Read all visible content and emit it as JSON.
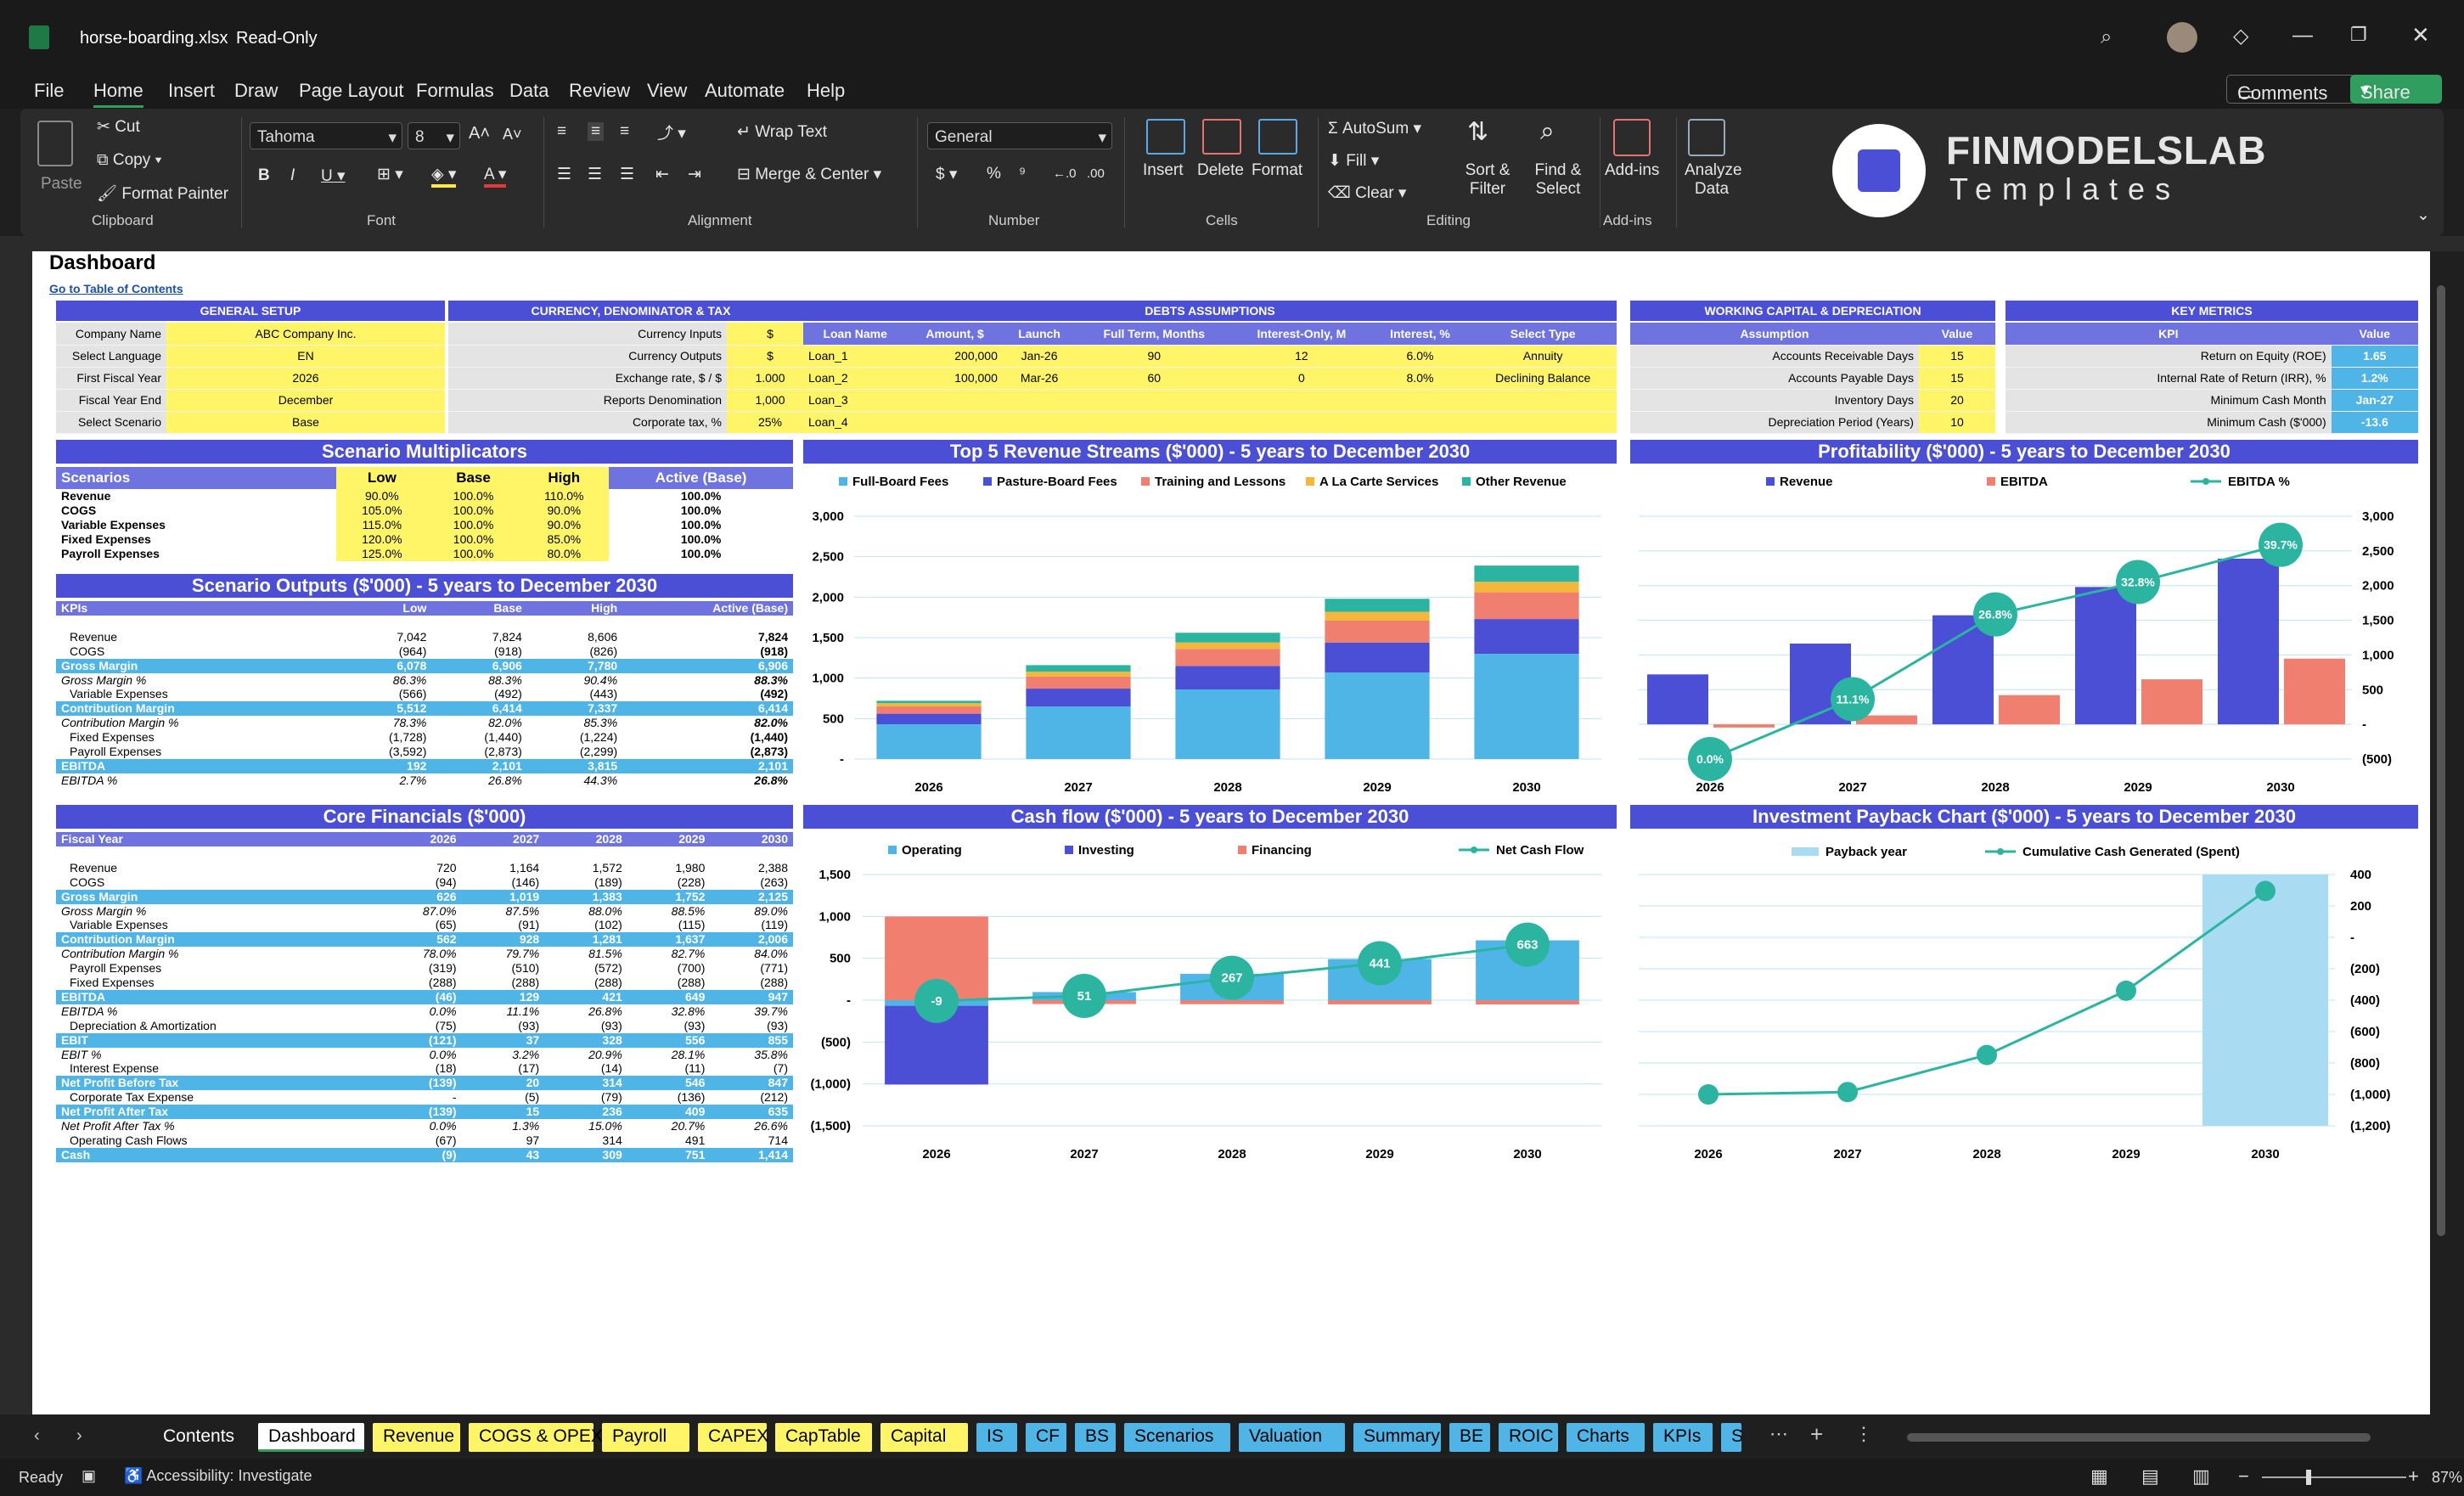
{
  "window": {
    "file_name": "horse-boarding.xlsx",
    "mode": "Read-Only",
    "zoom": "87%"
  },
  "menu": [
    "File",
    "Home",
    "Insert",
    "Draw",
    "Page Layout",
    "Formulas",
    "Data",
    "Review",
    "View",
    "Automate",
    "Help"
  ],
  "buttons": {
    "comments": "Comments",
    "share": "Share"
  },
  "ribbon": {
    "paste": "Paste",
    "cut": "Cut",
    "copy": "Copy",
    "format_painter": "Format Painter",
    "clipboard": "Clipboard",
    "font_name": "Tahoma",
    "font_size": "8",
    "font": "Font",
    "wrap_text": "Wrap Text",
    "merge_center": "Merge & Center",
    "alignment": "Alignment",
    "number_format": "General",
    "number": "Number",
    "insert": "Insert",
    "delete": "Delete",
    "format": "Format",
    "cells": "Cells",
    "autosum": "AutoSum",
    "fill": "Fill",
    "clear": "Clear",
    "sort_filter": "Sort & Filter",
    "find_select": "Find & Select",
    "editing": "Editing",
    "addins": "Add-ins",
    "addins_group": "Add-ins",
    "analyze": "Analyze Data",
    "brand_line1": "FINMODELSLAB",
    "brand_line2": "Templates"
  },
  "sheet": {
    "title": "Dashboard",
    "link": "Go to Table of Contents"
  },
  "general_setup": {
    "header": "GENERAL SETUP",
    "rows": [
      [
        "Company Name",
        "ABC Company Inc."
      ],
      [
        "Select Language",
        "EN"
      ],
      [
        "First Fiscal Year",
        "2026"
      ],
      [
        "Fiscal Year End",
        "December"
      ],
      [
        "Select Scenario",
        "Base"
      ]
    ]
  },
  "currency": {
    "header": "CURRENCY, DENOMINATOR & TAX",
    "rows": [
      [
        "Currency Inputs",
        "$"
      ],
      [
        "Currency Outputs",
        "$"
      ],
      [
        "Exchange rate, $ / $",
        "1.000"
      ],
      [
        "Reports Denomination",
        "1,000"
      ],
      [
        "Corporate tax, %",
        "25%"
      ]
    ]
  },
  "debts": {
    "header": "DEBTS ASSUMPTIONS",
    "cols": [
      "Loan Name",
      "Amount, $",
      "Launch",
      "Full Term, Months",
      "Interest-Only, M",
      "Interest, %",
      "Select Type"
    ],
    "rows": [
      [
        "Loan_1",
        "200,000",
        "Jan-26",
        "90",
        "12",
        "6.0%",
        "Annuity"
      ],
      [
        "Loan_2",
        "100,000",
        "Mar-26",
        "60",
        "0",
        "8.0%",
        "Declining Balance"
      ],
      [
        "Loan_3",
        "",
        "",
        "",
        "",
        "",
        ""
      ],
      [
        "Loan_4",
        "",
        "",
        "",
        "",
        "",
        ""
      ]
    ]
  },
  "wc": {
    "header": "WORKING CAPITAL & DEPRECIATION",
    "cols": [
      "Assumption",
      "Value"
    ],
    "rows": [
      [
        "Accounts Receivable Days",
        "15"
      ],
      [
        "Accounts Payable Days",
        "15"
      ],
      [
        "Inventory Days",
        "20"
      ],
      [
        "Depreciation Period (Years)",
        "10"
      ]
    ]
  },
  "metrics": {
    "header": "KEY METRICS",
    "cols": [
      "KPI",
      "Value"
    ],
    "rows": [
      [
        "Return on Equity (ROE)",
        "1.65"
      ],
      [
        "Internal Rate of Return (IRR), %",
        "1.2%"
      ],
      [
        "Minimum Cash Month",
        "Jan-27"
      ],
      [
        "Minimum Cash ($'000)",
        "-13.6"
      ]
    ]
  },
  "multipliers": {
    "header": "Scenario Multiplicators",
    "cols": [
      "Scenarios",
      "Low",
      "Base",
      "High",
      "Active (Base)"
    ],
    "rows": [
      [
        "Revenue",
        "90.0%",
        "100.0%",
        "110.0%",
        "100.0%"
      ],
      [
        "COGS",
        "105.0%",
        "100.0%",
        "90.0%",
        "100.0%"
      ],
      [
        "Variable Expenses",
        "115.0%",
        "100.0%",
        "90.0%",
        "100.0%"
      ],
      [
        "Fixed Expenses",
        "120.0%",
        "100.0%",
        "85.0%",
        "100.0%"
      ],
      [
        "Payroll Expenses",
        "125.0%",
        "100.0%",
        "80.0%",
        "100.0%"
      ]
    ]
  },
  "outputs": {
    "header": "Scenario Outputs ($'000) - 5 years to December 2030",
    "cols": [
      "KPIs",
      "Low",
      "Base",
      "High",
      "Active (Base)"
    ],
    "rows": [
      [
        "Revenue",
        "7,042",
        "7,824",
        "8,606",
        "7,824"
      ],
      [
        "COGS",
        "(964)",
        "(918)",
        "(826)",
        "(918)"
      ],
      [
        "Gross Margin",
        "6,078",
        "6,906",
        "7,780",
        "6,906"
      ],
      [
        "Gross Margin %",
        "86.3%",
        "88.3%",
        "90.4%",
        "88.3%"
      ],
      [
        "Variable Expenses",
        "(566)",
        "(492)",
        "(443)",
        "(492)"
      ],
      [
        "Contribution Margin",
        "5,512",
        "6,414",
        "7,337",
        "6,414"
      ],
      [
        "Contribution Margin %",
        "78.3%",
        "82.0%",
        "85.3%",
        "82.0%"
      ],
      [
        "Fixed Expenses",
        "(1,728)",
        "(1,440)",
        "(1,224)",
        "(1,440)"
      ],
      [
        "Payroll Expenses",
        "(3,592)",
        "(2,873)",
        "(2,299)",
        "(2,873)"
      ],
      [
        "EBITDA",
        "192",
        "2,101",
        "3,815",
        "2,101"
      ],
      [
        "EBITDA %",
        "2.7%",
        "26.8%",
        "44.3%",
        "26.8%"
      ]
    ]
  },
  "core": {
    "header": "Core Financials ($'000)",
    "cols": [
      "Fiscal Year",
      "2026",
      "2027",
      "2028",
      "2029",
      "2030"
    ],
    "rows": [
      [
        "Revenue",
        "720",
        "1,164",
        "1,572",
        "1,980",
        "2,388"
      ],
      [
        "COGS",
        "(94)",
        "(146)",
        "(189)",
        "(228)",
        "(263)"
      ],
      [
        "Gross Margin",
        "626",
        "1,019",
        "1,383",
        "1,752",
        "2,125"
      ],
      [
        "Gross Margin %",
        "87.0%",
        "87.5%",
        "88.0%",
        "88.5%",
        "89.0%"
      ],
      [
        "Variable Expenses",
        "(65)",
        "(91)",
        "(102)",
        "(115)",
        "(119)"
      ],
      [
        "Contribution Margin",
        "562",
        "928",
        "1,281",
        "1,637",
        "2,006"
      ],
      [
        "Contribution Margin %",
        "78.0%",
        "79.7%",
        "81.5%",
        "82.7%",
        "84.0%"
      ],
      [
        "Payroll Expenses",
        "(319)",
        "(510)",
        "(572)",
        "(700)",
        "(771)"
      ],
      [
        "Fixed Expenses",
        "(288)",
        "(288)",
        "(288)",
        "(288)",
        "(288)"
      ],
      [
        "EBITDA",
        "(46)",
        "129",
        "421",
        "649",
        "947"
      ],
      [
        "EBITDA %",
        "0.0%",
        "11.1%",
        "26.8%",
        "32.8%",
        "39.7%"
      ],
      [
        "Depreciation & Amortization",
        "(75)",
        "(93)",
        "(93)",
        "(93)",
        "(93)"
      ],
      [
        "EBIT",
        "(121)",
        "37",
        "328",
        "556",
        "855"
      ],
      [
        "EBIT %",
        "0.0%",
        "3.2%",
        "20.9%",
        "28.1%",
        "35.8%"
      ],
      [
        "Interest Expense",
        "(18)",
        "(17)",
        "(14)",
        "(11)",
        "(7)"
      ],
      [
        "Net Profit Before Tax",
        "(139)",
        "20",
        "314",
        "546",
        "847"
      ],
      [
        "Corporate Tax Expense",
        "-",
        "(5)",
        "(79)",
        "(136)",
        "(212)"
      ],
      [
        "Net Profit After Tax",
        "(139)",
        "15",
        "236",
        "409",
        "635"
      ],
      [
        "Net Profit After Tax %",
        "0.0%",
        "1.3%",
        "15.0%",
        "20.7%",
        "26.6%"
      ],
      [
        "Operating Cash Flows",
        "(67)",
        "97",
        "314",
        "491",
        "714"
      ],
      [
        "Cash",
        "(9)",
        "43",
        "309",
        "751",
        "1,414"
      ]
    ]
  },
  "chart_data": [
    {
      "type": "bar",
      "title": "Top 5 Revenue Streams ($'000) - 5 years to December 2030",
      "categories": [
        "2026",
        "2027",
        "2028",
        "2029",
        "2030"
      ],
      "ylim": [
        0,
        3000
      ],
      "yticks": [
        "-",
        "500",
        "1,000",
        "1,500",
        "2,000",
        "2,500",
        "3,000"
      ],
      "series": [
        {
          "name": "Full-Board Fees",
          "color": "#4fb5e6",
          "values": [
            430,
            650,
            860,
            1070,
            1300
          ]
        },
        {
          "name": "Pasture-Board Fees",
          "color": "#4b4fd6",
          "values": [
            130,
            220,
            290,
            370,
            430
          ]
        },
        {
          "name": "Training and Lessons",
          "color": "#f07f6f",
          "values": [
            90,
            150,
            210,
            270,
            330
          ]
        },
        {
          "name": "A La Carte Services",
          "color": "#f5b73b",
          "values": [
            40,
            60,
            80,
            110,
            130
          ]
        },
        {
          "name": "Other Revenue",
          "color": "#2bb5a0",
          "values": [
            30,
            80,
            120,
            160,
            200
          ]
        }
      ]
    },
    {
      "type": "bar",
      "title": "Profitability ($'000) - 5 years to December 2030",
      "categories": [
        "2026",
        "2027",
        "2028",
        "2029",
        "2030"
      ],
      "ylim": [
        -500,
        3000
      ],
      "yticks": [
        "(500)",
        "-",
        "500",
        "1,000",
        "1,500",
        "2,000",
        "2,500",
        "3,000"
      ],
      "series": [
        {
          "name": "Revenue",
          "color": "#4b4fd6",
          "values": [
            720,
            1164,
            1572,
            1980,
            2388
          ]
        },
        {
          "name": "EBITDA",
          "color": "#f07f6f",
          "values": [
            -46,
            129,
            421,
            649,
            947
          ]
        },
        {
          "name": "EBITDA %",
          "color": "#2bb5a0",
          "values": [
            0.0,
            11.1,
            26.8,
            32.8,
            39.7
          ],
          "labels": [
            "0.0%",
            "11.1%",
            "26.8%",
            "32.8%",
            "39.7%"
          ]
        }
      ]
    },
    {
      "type": "bar",
      "title": "Cash flow ($'000) - 5 years to December 2030",
      "categories": [
        "2026",
        "2027",
        "2028",
        "2029",
        "2030"
      ],
      "ylim": [
        -1500,
        1500
      ],
      "yticks": [
        "(1,500)",
        "(1,000)",
        "(500)",
        "-",
        "500",
        "1,000",
        "1,500"
      ],
      "series": [
        {
          "name": "Operating",
          "color": "#4fb5e6",
          "values": [
            -67,
            97,
            314,
            491,
            714
          ]
        },
        {
          "name": "Investing",
          "color": "#4b4fd6",
          "values": [
            -940,
            0,
            0,
            0,
            0
          ]
        },
        {
          "name": "Financing",
          "color": "#f07f6f",
          "values": [
            998,
            -46,
            -48,
            -50,
            -51
          ]
        },
        {
          "name": "Net Cash Flow",
          "color": "#2bb5a0",
          "values": [
            -9,
            51,
            267,
            441,
            663
          ],
          "labels": [
            "-9",
            "51",
            "267",
            "441",
            "663"
          ]
        }
      ]
    },
    {
      "type": "line",
      "title": "Investment Payback Chart ($'000) - 5 years to December 2030",
      "categories": [
        "2026",
        "2027",
        "2028",
        "2029",
        "2030"
      ],
      "ylim": [
        -1200,
        400
      ],
      "yticks": [
        "(1,200)",
        "(1,000)",
        "(800)",
        "(600)",
        "(400)",
        "(200)",
        "-",
        "200",
        "400"
      ],
      "series": [
        {
          "name": "Payback year",
          "color": "#a9dcf3",
          "values": [
            0,
            0,
            0,
            0,
            1
          ]
        },
        {
          "name": "Cumulative Cash Generated (Spent)",
          "color": "#2bb5a0",
          "values": [
            -1000,
            -985,
            -749,
            -340,
            295
          ]
        }
      ]
    }
  ],
  "tabs": [
    "Contents",
    "Dashboard",
    "Revenue",
    "COGS & OPEX",
    "Payroll",
    "CAPEX",
    "CapTable",
    "Capital",
    "IS",
    "CF",
    "BS",
    "Scenarios",
    "Valuation",
    "Summary",
    "BE",
    "ROIC",
    "Charts",
    "KPIs",
    "Sc"
  ],
  "status": {
    "ready": "Ready",
    "accessibility": "Accessibility: Investigate",
    "zoom": "87%"
  },
  "colors": {
    "accent": "#4b4fd6",
    "blue": "#4fb5e6",
    "salmon": "#f07f6f",
    "teal": "#2bb5a0",
    "yellow": "#fff566"
  }
}
